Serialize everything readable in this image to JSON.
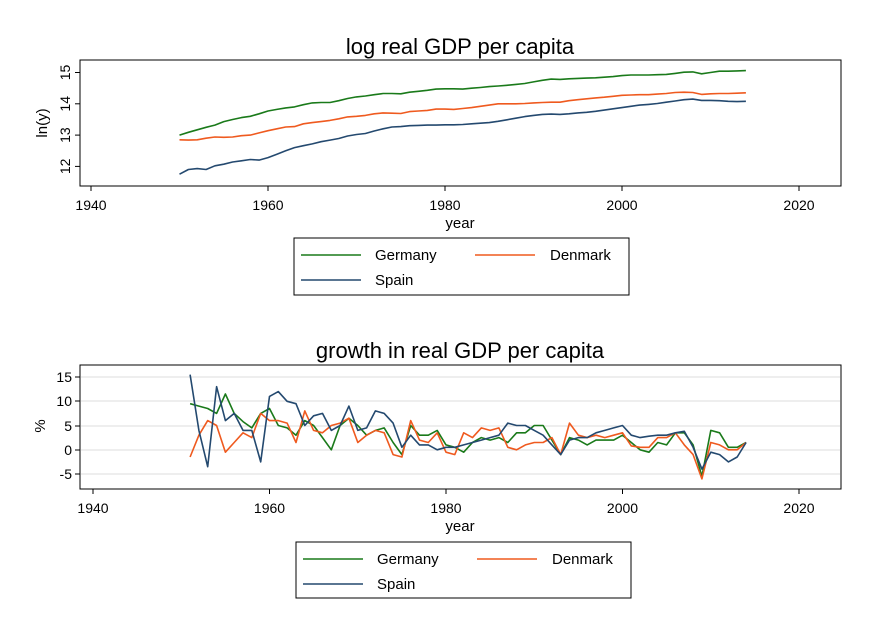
{
  "chart_data": [
    {
      "type": "line",
      "title": "log real GDP per capita",
      "xlabel": "year",
      "ylabel": "ln(y)",
      "xlim": [
        1940,
        2020
      ],
      "ylim": [
        11.5,
        15.4
      ],
      "xticks": [
        "1940",
        "1960",
        "1980",
        "2000",
        "2020"
      ],
      "yticks": [
        "12",
        "13",
        "14",
        "15"
      ],
      "grid": false,
      "legend_position": "bottom",
      "x": [
        1950,
        1951,
        1952,
        1953,
        1954,
        1955,
        1956,
        1957,
        1958,
        1959,
        1960,
        1961,
        1962,
        1963,
        1964,
        1965,
        1966,
        1967,
        1968,
        1969,
        1970,
        1971,
        1972,
        1973,
        1974,
        1975,
        1976,
        1977,
        1978,
        1979,
        1980,
        1981,
        1982,
        1983,
        1984,
        1985,
        1986,
        1987,
        1988,
        1989,
        1990,
        1991,
        1992,
        1993,
        1994,
        1995,
        1996,
        1997,
        1998,
        1999,
        2000,
        2001,
        2002,
        2003,
        2004,
        2005,
        2006,
        2007,
        2008,
        2009,
        2010,
        2011,
        2012,
        2013,
        2014
      ],
      "series": [
        {
          "name": "Germany",
          "color": "#1a7a1a",
          "values": [
            13.0,
            13.09,
            13.17,
            13.25,
            13.32,
            13.43,
            13.5,
            13.56,
            13.6,
            13.68,
            13.77,
            13.82,
            13.87,
            13.9,
            13.97,
            14.03,
            14.04,
            14.04,
            14.1,
            14.17,
            14.22,
            14.25,
            14.29,
            14.33,
            14.33,
            14.32,
            14.37,
            14.4,
            14.43,
            14.47,
            14.48,
            14.48,
            14.47,
            14.5,
            14.52,
            14.55,
            14.57,
            14.59,
            14.62,
            14.65,
            14.7,
            14.75,
            14.79,
            14.78,
            14.8,
            14.81,
            14.82,
            14.83,
            14.85,
            14.87,
            14.9,
            14.92,
            14.92,
            14.92,
            14.93,
            14.94,
            14.97,
            15.01,
            15.02,
            14.96,
            15.0,
            15.04,
            15.04,
            15.05,
            15.06
          ]
        },
        {
          "name": "Denmark",
          "color": "#ef5a1f",
          "values": [
            12.85,
            12.84,
            12.85,
            12.9,
            12.94,
            12.93,
            12.94,
            12.98,
            13.0,
            13.07,
            13.14,
            13.2,
            13.26,
            13.27,
            13.36,
            13.4,
            13.43,
            13.47,
            13.52,
            13.58,
            13.6,
            13.63,
            13.68,
            13.71,
            13.7,
            13.69,
            13.75,
            13.77,
            13.79,
            13.83,
            13.83,
            13.82,
            13.85,
            13.88,
            13.92,
            13.96,
            14.0,
            14.0,
            14.0,
            14.01,
            14.03,
            14.04,
            14.05,
            14.05,
            14.1,
            14.13,
            14.16,
            14.19,
            14.21,
            14.24,
            14.27,
            14.28,
            14.29,
            14.29,
            14.31,
            14.33,
            14.36,
            14.37,
            14.36,
            14.3,
            14.32,
            14.33,
            14.33,
            14.34,
            14.35
          ]
        },
        {
          "name": "Spain",
          "color": "#24496f",
          "values": [
            11.75,
            11.9,
            11.93,
            11.9,
            12.02,
            12.07,
            12.14,
            12.18,
            12.22,
            12.2,
            12.28,
            12.39,
            12.5,
            12.6,
            12.66,
            12.72,
            12.79,
            12.84,
            12.89,
            12.97,
            13.02,
            13.05,
            13.13,
            13.2,
            13.26,
            13.27,
            13.3,
            13.31,
            13.32,
            13.32,
            13.33,
            13.33,
            13.34,
            13.36,
            13.38,
            13.4,
            13.44,
            13.49,
            13.54,
            13.59,
            13.63,
            13.66,
            13.67,
            13.66,
            13.68,
            13.71,
            13.73,
            13.76,
            13.8,
            13.84,
            13.88,
            13.92,
            13.96,
            13.98,
            14.01,
            14.05,
            14.09,
            14.13,
            14.15,
            14.11,
            14.11,
            14.1,
            14.08,
            14.07,
            14.08
          ]
        }
      ]
    },
    {
      "type": "line",
      "title": "growth in real GDP per capita",
      "xlabel": "year",
      "ylabel": "%",
      "xlim": [
        1940,
        2020
      ],
      "ylim": [
        -8,
        17
      ],
      "xticks": [
        "1940",
        "1960",
        "1980",
        "2000",
        "2020"
      ],
      "yticks": [
        "-5",
        "0",
        "5",
        "10",
        "15"
      ],
      "grid": true,
      "legend_position": "bottom",
      "x": [
        1951,
        1952,
        1953,
        1954,
        1955,
        1956,
        1957,
        1958,
        1959,
        1960,
        1961,
        1962,
        1963,
        1964,
        1965,
        1966,
        1967,
        1968,
        1969,
        1970,
        1971,
        1972,
        1973,
        1974,
        1975,
        1976,
        1977,
        1978,
        1979,
        1980,
        1981,
        1982,
        1983,
        1984,
        1985,
        1986,
        1987,
        1988,
        1989,
        1990,
        1991,
        1992,
        1993,
        1994,
        1995,
        1996,
        1997,
        1998,
        1999,
        2000,
        2001,
        2002,
        2003,
        2004,
        2005,
        2006,
        2007,
        2008,
        2009,
        2010,
        2011,
        2012,
        2013,
        2014
      ],
      "series": [
        {
          "name": "Germany",
          "color": "#1a7a1a",
          "values": [
            9.5,
            9.0,
            8.5,
            7.5,
            11.5,
            7.5,
            5.8,
            4.5,
            7.5,
            8.5,
            5.0,
            4.5,
            3.0,
            6.0,
            5.0,
            2.5,
            0.0,
            5.0,
            6.5,
            5.0,
            3.0,
            4.0,
            4.5,
            1.5,
            -1.0,
            5.0,
            3.0,
            3.0,
            4.0,
            1.0,
            0.5,
            -0.5,
            1.5,
            2.5,
            2.0,
            2.5,
            1.5,
            3.5,
            3.5,
            5.0,
            5.0,
            2.0,
            -1.0,
            2.5,
            2.0,
            1.0,
            2.0,
            2.0,
            2.0,
            3.0,
            1.5,
            0.0,
            -0.5,
            1.5,
            1.0,
            3.5,
            3.5,
            1.0,
            -5.5,
            4.0,
            3.5,
            0.5,
            0.5,
            1.5
          ]
        },
        {
          "name": "Denmark",
          "color": "#ef5a1f",
          "values": [
            -1.5,
            3.0,
            6.0,
            5.0,
            -0.5,
            1.5,
            3.5,
            2.5,
            7.5,
            6.0,
            6.0,
            5.5,
            1.5,
            8.0,
            4.0,
            3.5,
            5.0,
            5.5,
            6.5,
            1.5,
            3.0,
            4.0,
            3.5,
            -1.0,
            -1.5,
            6.0,
            2.0,
            1.5,
            3.5,
            -0.5,
            -1.0,
            3.5,
            2.5,
            4.5,
            4.0,
            4.5,
            0.5,
            0.0,
            1.0,
            1.5,
            1.5,
            2.5,
            -1.0,
            5.5,
            3.0,
            2.5,
            3.0,
            2.5,
            3.0,
            3.5,
            0.8,
            0.5,
            0.5,
            2.5,
            2.5,
            3.5,
            1.0,
            -1.0,
            -6.0,
            1.5,
            1.0,
            0.0,
            0.0,
            1.5
          ]
        },
        {
          "name": "Spain",
          "color": "#24496f",
          "values": [
            15.5,
            4.0,
            -3.5,
            13.0,
            6.0,
            7.5,
            4.0,
            4.0,
            -2.5,
            11.0,
            12.0,
            10.0,
            9.5,
            5.0,
            7.0,
            7.5,
            4.0,
            5.0,
            9.0,
            4.0,
            4.5,
            8.0,
            7.5,
            5.5,
            0.5,
            3.0,
            1.0,
            1.0,
            0.0,
            0.5,
            0.5,
            1.0,
            1.5,
            2.0,
            2.5,
            3.0,
            5.5,
            5.0,
            5.0,
            4.0,
            3.0,
            1.0,
            -1.0,
            2.0,
            2.5,
            2.5,
            3.5,
            4.0,
            4.5,
            5.0,
            3.0,
            2.5,
            2.8,
            3.0,
            3.0,
            3.5,
            3.8,
            0.5,
            -4.0,
            -0.5,
            -1.0,
            -2.5,
            -1.5,
            1.5
          ]
        }
      ]
    }
  ]
}
